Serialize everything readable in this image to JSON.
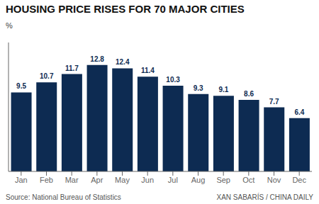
{
  "chart_data": {
    "type": "bar",
    "title": "HOUSING PRICE RISES FOR 70 MAJOR CITIES",
    "ylabel": "%",
    "categories": [
      "Jan",
      "Feb",
      "Mar",
      "Apr",
      "May",
      "Jun",
      "Jul",
      "Aug",
      "Sep",
      "Oct",
      "Nov",
      "Dec"
    ],
    "values": [
      9.5,
      10.7,
      11.7,
      12.8,
      12.4,
      11.4,
      10.3,
      9.3,
      9.1,
      8.6,
      7.7,
      6.4
    ],
    "color": "#0d2b52",
    "ylim": [
      0,
      15.5
    ],
    "grid": false,
    "data_labels": true,
    "tick_labels": "x",
    "annotations": [
      "Source: National Bureau of Statistics",
      "XAN SABARÍS / CHINA DAILY"
    ]
  }
}
